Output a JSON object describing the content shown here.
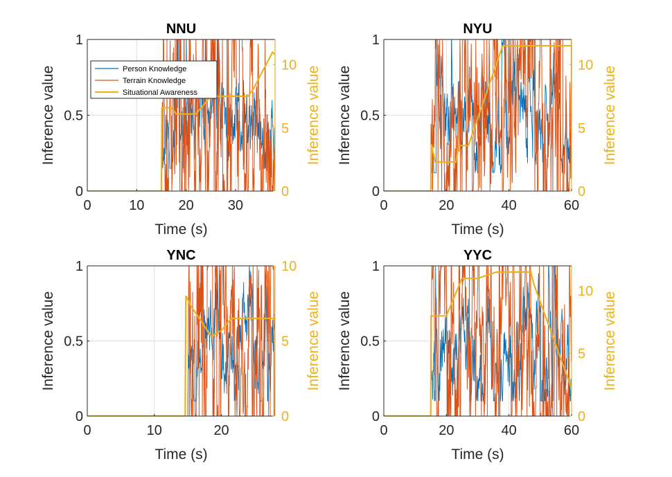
{
  "colors": {
    "person": "#0072BD",
    "terrain": "#D95319",
    "awareness": "#EDB120",
    "axis": "#262626",
    "grid": "#dfdfdf"
  },
  "legend": {
    "items": [
      {
        "key": "person",
        "label": "Person Knowledge"
      },
      {
        "key": "terrain",
        "label": "Terrain Knowledge"
      },
      {
        "key": "awareness",
        "label": "Situational Awareness"
      }
    ]
  },
  "chart_data": [
    {
      "type": "line",
      "title": "NNU",
      "xlabel": "Time (s)",
      "ylabel": "Inference value",
      "ylabel_right": "Inference value",
      "xlim": [
        0,
        38
      ],
      "ylim": [
        0,
        1
      ],
      "ylim_right": [
        0,
        12
      ],
      "xticks": [
        0,
        10,
        20,
        30
      ],
      "yticks": [
        0,
        0.5,
        1
      ],
      "yticks_right": [
        0,
        5,
        10
      ],
      "grid": true,
      "legend_position": "top-left",
      "active_from": 15,
      "series": [
        {
          "key": "person",
          "name": "Person Knowledge",
          "base": 0.35,
          "amp": 0.35,
          "min": 0.15,
          "max": 1.0,
          "seed": 11
        },
        {
          "key": "terrain",
          "name": "Terrain Knowledge",
          "base": 0.55,
          "amp": 0.75,
          "min": 0.0,
          "max": 1.0,
          "seed": 23
        },
        {
          "key": "awareness",
          "name": "Situational Awareness",
          "axis": "right",
          "x": [
            0,
            15,
            15.1,
            17,
            18,
            22,
            25,
            32.5,
            33.5,
            37.5,
            38
          ],
          "y": [
            0,
            0,
            6.6,
            6.6,
            6.1,
            6.1,
            7.5,
            7.5,
            8.0,
            11.0,
            10.8
          ]
        }
      ]
    },
    {
      "type": "line",
      "title": "NYU",
      "xlabel": "Time (s)",
      "ylabel": "Inference value",
      "ylabel_right": "Inference value",
      "xlim": [
        0,
        60
      ],
      "ylim": [
        0,
        1
      ],
      "ylim_right": [
        0,
        12
      ],
      "xticks": [
        0,
        20,
        40,
        60
      ],
      "yticks": [
        0,
        0.5,
        1
      ],
      "yticks_right": [
        0,
        5,
        10
      ],
      "grid": true,
      "active_from": 15,
      "series": [
        {
          "key": "person",
          "name": "Person Knowledge",
          "base": 0.4,
          "amp": 0.35,
          "min": 0.12,
          "max": 1.0,
          "seed": 37
        },
        {
          "key": "terrain",
          "name": "Terrain Knowledge",
          "base": 0.6,
          "amp": 0.7,
          "min": 0.0,
          "max": 1.0,
          "seed": 41
        },
        {
          "key": "awareness",
          "name": "Situational Awareness",
          "axis": "right",
          "x": [
            0,
            15,
            15.2,
            16.5,
            17,
            23,
            24,
            27,
            38,
            39,
            60
          ],
          "y": [
            0,
            0,
            3.7,
            2.3,
            2.3,
            2.3,
            3.6,
            3.6,
            11.5,
            11.5,
            11.5
          ]
        }
      ]
    },
    {
      "type": "line",
      "title": "YNC",
      "xlabel": "Time (s)",
      "ylabel": "Inference value",
      "ylabel_right": "Inference value",
      "xlim": [
        0,
        28
      ],
      "ylim": [
        0,
        1
      ],
      "ylim_right": [
        0,
        10
      ],
      "xticks": [
        0,
        10,
        20
      ],
      "yticks": [
        0,
        0.5,
        1
      ],
      "yticks_right": [
        0,
        5,
        10
      ],
      "grid": true,
      "active_from": 15,
      "series": [
        {
          "key": "person",
          "name": "Person Knowledge",
          "base": 0.5,
          "amp": 0.35,
          "min": 0.1,
          "max": 1.0,
          "seed": 53
        },
        {
          "key": "terrain",
          "name": "Terrain Knowledge",
          "base": 0.6,
          "amp": 0.8,
          "min": 0.0,
          "max": 1.0,
          "seed": 59
        },
        {
          "key": "awareness",
          "name": "Situational Awareness",
          "axis": "right",
          "x": [
            0,
            14.6,
            14.7,
            15.5,
            18.5,
            20,
            21.5,
            28
          ],
          "y": [
            0,
            0,
            8.0,
            7.3,
            5.3,
            5.7,
            6.5,
            6.5
          ]
        }
      ]
    },
    {
      "type": "line",
      "title": "YYC",
      "xlabel": "Time (s)",
      "ylabel": "Inference value",
      "ylabel_right": "Inference value",
      "xlim": [
        0,
        60
      ],
      "ylim": [
        0,
        1
      ],
      "ylim_right": [
        0,
        12
      ],
      "xticks": [
        0,
        20,
        40,
        60
      ],
      "yticks": [
        0,
        0.5,
        1
      ],
      "yticks_right": [
        0,
        5,
        10
      ],
      "grid": true,
      "active_from": 15,
      "series": [
        {
          "key": "person",
          "name": "Person Knowledge",
          "base": 0.45,
          "amp": 0.35,
          "min": 0.1,
          "max": 1.0,
          "seed": 67
        },
        {
          "key": "terrain",
          "name": "Terrain Knowledge",
          "base": 0.55,
          "amp": 0.75,
          "min": 0.0,
          "max": 1.0,
          "seed": 71
        },
        {
          "key": "awareness",
          "name": "Situational Awareness",
          "axis": "right",
          "x": [
            0,
            15,
            15.1,
            20,
            25,
            30,
            36,
            40,
            47,
            48,
            60
          ],
          "y": [
            0,
            0,
            8.0,
            8.0,
            11.0,
            11.0,
            11.5,
            11.5,
            11.5,
            10.5,
            2.2
          ]
        }
      ]
    }
  ]
}
